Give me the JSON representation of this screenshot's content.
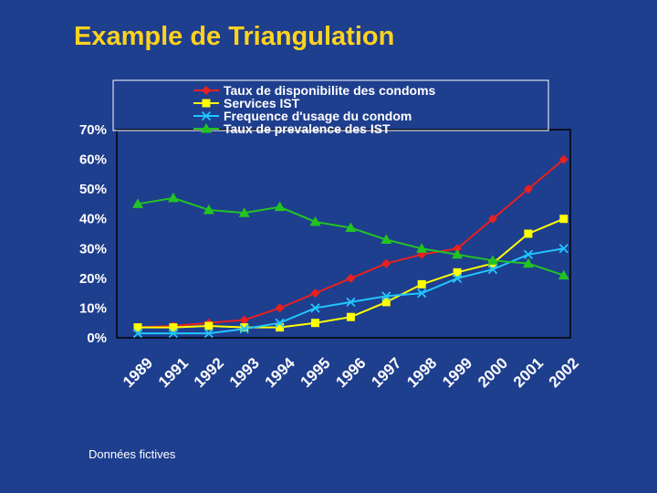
{
  "slide": {
    "title": "Example de Triangulation",
    "footnote": "Données fictives"
  },
  "chart_data": {
    "type": "line",
    "title": "",
    "xlabel": "",
    "ylabel": "",
    "categories": [
      "1989",
      "1991",
      "1992",
      "1993",
      "1994",
      "1995",
      "1996",
      "1997",
      "1998",
      "1999",
      "2000",
      "2001",
      "2002"
    ],
    "y_tick_labels": [
      "0%",
      "10%",
      "20%",
      "30%",
      "40%",
      "50%",
      "60%",
      "70%"
    ],
    "ylim": [
      0,
      70
    ],
    "grid": false,
    "legend_position": "top",
    "series": [
      {
        "name": "Taux de disponibilite des condoms",
        "color": "#e8201e",
        "marker": "diamond",
        "values": [
          3.5,
          4,
          5,
          6,
          10,
          15,
          20,
          25,
          28,
          30,
          40,
          50,
          60
        ]
      },
      {
        "name": "Services IST",
        "color": "#ffff00",
        "marker": "square",
        "values": [
          3.5,
          3.5,
          4,
          3.5,
          3.5,
          5,
          7,
          12,
          18,
          22,
          25,
          35,
          40
        ]
      },
      {
        "name": "Frequence d'usage du condom",
        "color": "#22c6ff",
        "marker": "x",
        "values": [
          1.5,
          1.5,
          1.5,
          3,
          5,
          10,
          12,
          14,
          15,
          20,
          23,
          28,
          30
        ]
      },
      {
        "name": "Taux de prevalence des IST",
        "color": "#22c422",
        "marker": "triangle",
        "values": [
          45,
          47,
          43,
          42,
          44,
          39,
          37,
          33,
          30,
          28,
          26,
          25,
          21
        ]
      }
    ]
  }
}
